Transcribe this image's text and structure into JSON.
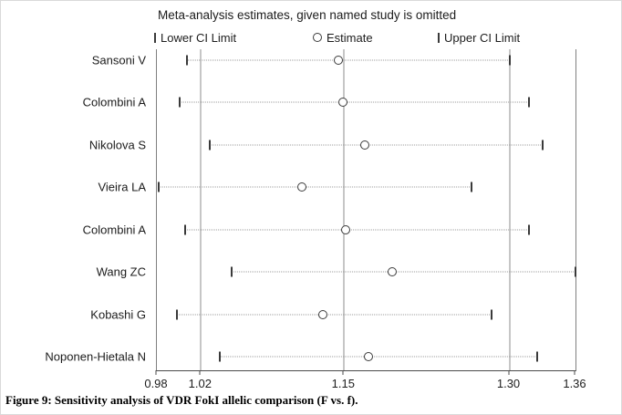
{
  "title": "Meta-analysis estimates, given named study is omitted",
  "legend": {
    "lower": "Lower CI Limit",
    "estimate": "Estimate",
    "upper": "Upper CI Limit"
  },
  "caption": "Figure 9: Sensitivity analysis of VDR FokI allelic comparison (F vs. f).",
  "colors": {
    "marker": "#3a3a3a",
    "reference_line": "#8e8e8e",
    "dotted_connector": "#9c9c9c",
    "text": "#1c1c1c",
    "background": "#ffffff"
  },
  "chart_data": {
    "type": "scatter",
    "title": "Meta-analysis estimates, given named study is omitted",
    "xlabel": "",
    "ylabel": "",
    "xlim": [
      0.98,
      1.36
    ],
    "x_axis": {
      "min": 0.98,
      "max": 1.36,
      "ticks": [
        0.98,
        1.02,
        1.15,
        1.3,
        1.36
      ]
    },
    "ref_lines": [
      1.02,
      1.15,
      1.3
    ],
    "legend_position": "top",
    "grid": false,
    "studies": [
      {
        "label": "Sansoni V",
        "lower": 1.007,
        "estimate": 1.145,
        "upper": 1.3
      },
      {
        "label": "Colombini A",
        "lower": 1.001,
        "estimate": 1.149,
        "upper": 1.318
      },
      {
        "label": "Nikolova S",
        "lower": 1.028,
        "estimate": 1.169,
        "upper": 1.33
      },
      {
        "label": "Vieira LA",
        "lower": 0.982,
        "estimate": 1.112,
        "upper": 1.266
      },
      {
        "label": "Colombini A",
        "lower": 1.006,
        "estimate": 1.151,
        "upper": 1.318
      },
      {
        "label": "Wang ZC",
        "lower": 1.048,
        "estimate": 1.194,
        "upper": 1.36
      },
      {
        "label": "Kobashi G",
        "lower": 0.998,
        "estimate": 1.131,
        "upper": 1.284
      },
      {
        "label": "Noponen-Hietala N",
        "lower": 1.037,
        "estimate": 1.172,
        "upper": 1.325
      }
    ]
  }
}
